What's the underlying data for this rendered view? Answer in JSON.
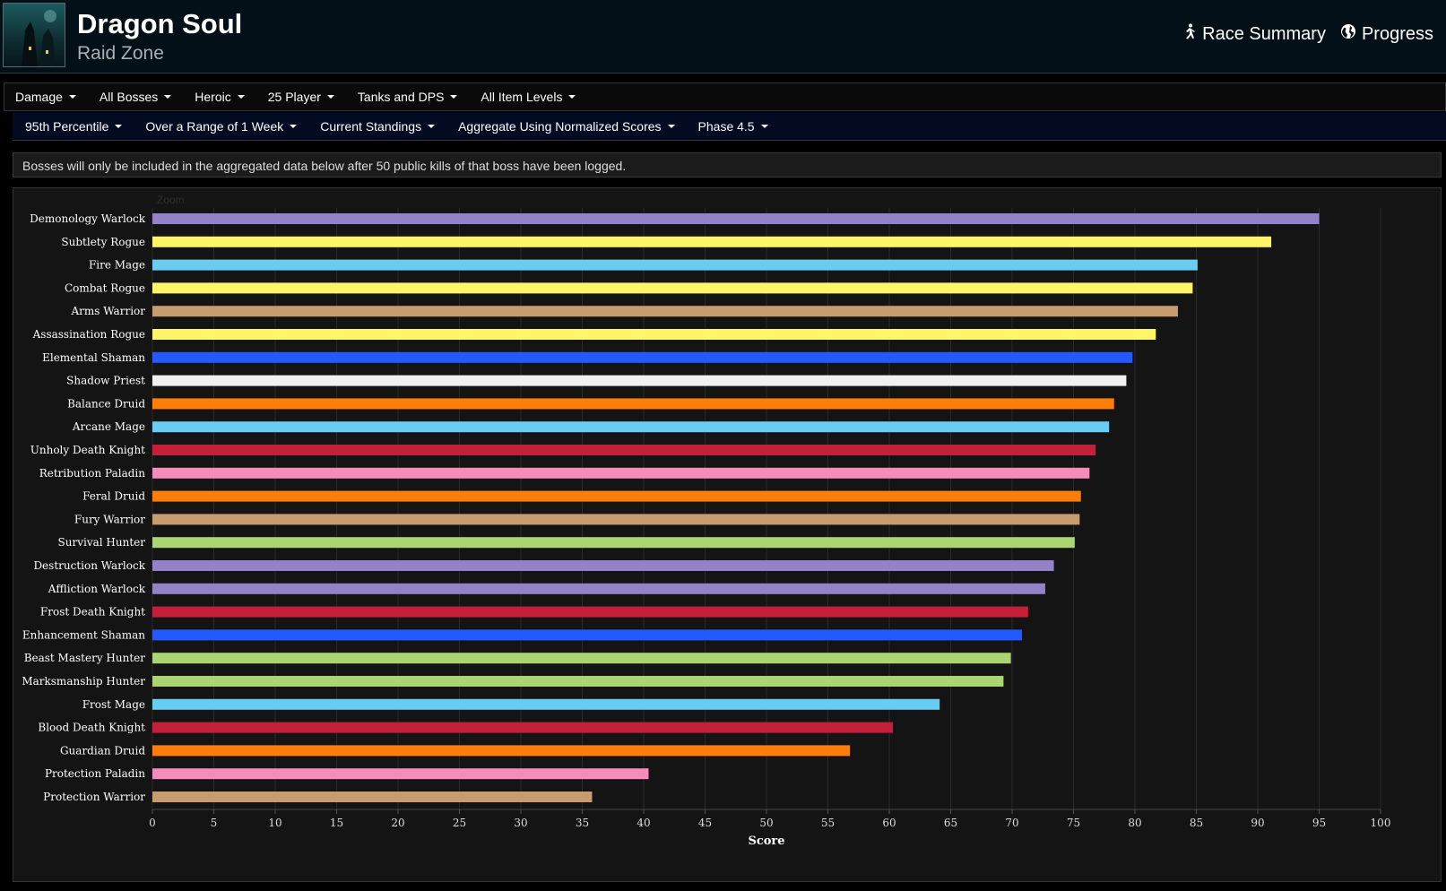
{
  "header": {
    "title": "Dragon Soul",
    "subtitle": "Raid Zone",
    "links": [
      {
        "label": "Race Summary",
        "icon": "runner-icon"
      },
      {
        "label": "Progress",
        "icon": "globe-icon"
      }
    ]
  },
  "filters_row1": [
    "Damage",
    "All Bosses",
    "Heroic",
    "25 Player",
    "Tanks and DPS",
    "All Item Levels"
  ],
  "filters_row2": [
    "95th Percentile",
    "Over a Range of 1 Week",
    "Current Standings",
    "Aggregate Using Normalized Scores",
    "Phase 4.5"
  ],
  "notice": "Bosses will only be included in the aggregated data below after 50 public kills of that boss have been logged.",
  "chart": {
    "zoom_label": "Zoom"
  },
  "chart_data": {
    "type": "bar",
    "orientation": "horizontal",
    "xlabel": "Score",
    "xlim": [
      0,
      100
    ],
    "xticks": [
      0,
      5,
      10,
      15,
      20,
      25,
      30,
      35,
      40,
      45,
      50,
      55,
      60,
      65,
      70,
      75,
      80,
      85,
      90,
      95,
      100
    ],
    "grid": true,
    "categories": [
      "Demonology Warlock",
      "Subtlety Rogue",
      "Fire Mage",
      "Combat Rogue",
      "Arms Warrior",
      "Assassination Rogue",
      "Elemental Shaman",
      "Shadow Priest",
      "Balance Druid",
      "Arcane Mage",
      "Unholy Death Knight",
      "Retribution Paladin",
      "Feral Druid",
      "Fury Warrior",
      "Survival Hunter",
      "Destruction Warlock",
      "Affliction Warlock",
      "Frost Death Knight",
      "Enhancement Shaman",
      "Beast Mastery Hunter",
      "Marksmanship Hunter",
      "Frost Mage",
      "Blood Death Knight",
      "Guardian Druid",
      "Protection Paladin",
      "Protection Warrior"
    ],
    "values": [
      95.0,
      91.1,
      85.1,
      84.7,
      83.5,
      81.7,
      79.8,
      79.3,
      78.3,
      77.9,
      76.8,
      76.3,
      75.6,
      75.5,
      75.1,
      73.4,
      72.7,
      71.3,
      70.8,
      69.9,
      69.3,
      64.1,
      60.3,
      56.8,
      40.4,
      35.8
    ],
    "colors": [
      "#9482c9",
      "#fff569",
      "#69ccf0",
      "#fff569",
      "#c79c6e",
      "#fff569",
      "#2459ff",
      "#f0f0f0",
      "#ff7d0a",
      "#69ccf0",
      "#c41f3b",
      "#f58cba",
      "#ff7d0a",
      "#c79c6e",
      "#abd473",
      "#9482c9",
      "#9482c9",
      "#c41f3b",
      "#2459ff",
      "#abd473",
      "#abd473",
      "#69ccf0",
      "#c41f3b",
      "#ff7d0a",
      "#f58cba",
      "#c79c6e"
    ]
  }
}
